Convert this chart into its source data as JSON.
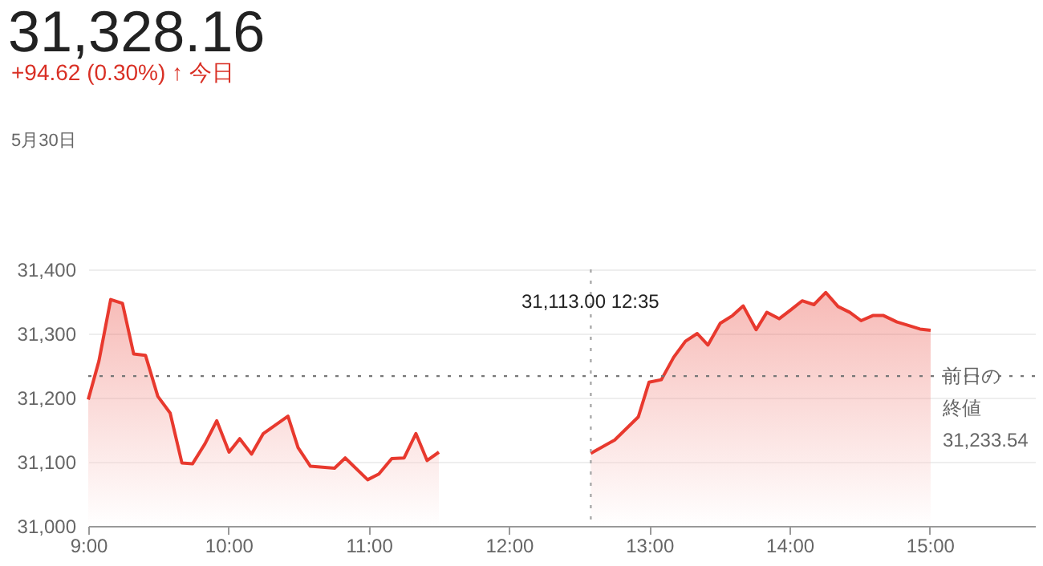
{
  "chart_data": {
    "type": "area",
    "title": "31,328.16",
    "subtitle": "+94.62 (0.30%) ↑ 今日",
    "annotations": [
      "5月30日",
      "31,113.00  12:35"
    ],
    "x": [
      9.0,
      9.076,
      9.16,
      9.244,
      9.324,
      9.408,
      9.496,
      9.584,
      9.668,
      9.744,
      9.832,
      9.916,
      10.004,
      10.08,
      10.164,
      10.248,
      10.424,
      10.496,
      10.584,
      10.756,
      10.832,
      10.992,
      11.072,
      11.164,
      11.252,
      11.336,
      11.416,
      11.5,
      12.0,
      12.583,
      12.754,
      12.922,
      12.998,
      13.086,
      13.174,
      13.258,
      13.342,
      13.418,
      13.506,
      13.594,
      13.67,
      13.762,
      13.838,
      13.926,
      14.01,
      14.09,
      14.174,
      14.258,
      14.346,
      14.43,
      14.51,
      14.594,
      14.67,
      14.766,
      14.842,
      14.93,
      15.006
    ],
    "series": [
      {
        "color": "#e8392e",
        "values": [
          31197,
          31257,
          31353,
          31347,
          31268,
          31266,
          31202,
          31176,
          31098,
          31097,
          31128,
          31164,
          31115,
          31136,
          31112,
          31144,
          31171,
          31122,
          31093,
          31090,
          31106,
          31072,
          31081,
          31105,
          31106,
          31144,
          31102,
          31115,
          null,
          31113,
          31134,
          31170,
          31224,
          31228,
          31263,
          31288,
          31300,
          31282,
          31316,
          31328,
          31343,
          31306,
          31333,
          31323,
          31337,
          31351,
          31345,
          31364,
          31342,
          31333,
          31320,
          31328,
          31328,
          31318,
          31313,
          31307,
          31305
        ]
      }
    ],
    "xlim": [
      9,
      15.75
    ],
    "ylim": [
      31000,
      31400
    ],
    "xticks": [
      {
        "value": 9,
        "label": "9:00"
      },
      {
        "value": 10,
        "label": "10:00"
      },
      {
        "value": 11,
        "label": "11:00"
      },
      {
        "value": 12,
        "label": "12:00"
      },
      {
        "value": 13,
        "label": "13:00"
      },
      {
        "value": 14,
        "label": "14:00"
      },
      {
        "value": 15,
        "label": "15:00"
      }
    ],
    "yticks": [
      {
        "value": 31000,
        "label": "31,000"
      },
      {
        "value": 31100,
        "label": "31,100"
      },
      {
        "value": 31200,
        "label": "31,200"
      },
      {
        "value": 31300,
        "label": "31,300"
      },
      {
        "value": 31400,
        "label": "31,400"
      }
    ],
    "ref_lines": [
      {
        "axis": "y",
        "value": 31233.54,
        "label": "前日の終値\n31,233.54",
        "color": "#777777",
        "line_style": "dotted"
      },
      {
        "axis": "x",
        "value": 12.583,
        "color": "#aaaaaa",
        "line_style": "dotted"
      }
    ],
    "grid": "y",
    "marker": "none",
    "line_style": "solid"
  }
}
